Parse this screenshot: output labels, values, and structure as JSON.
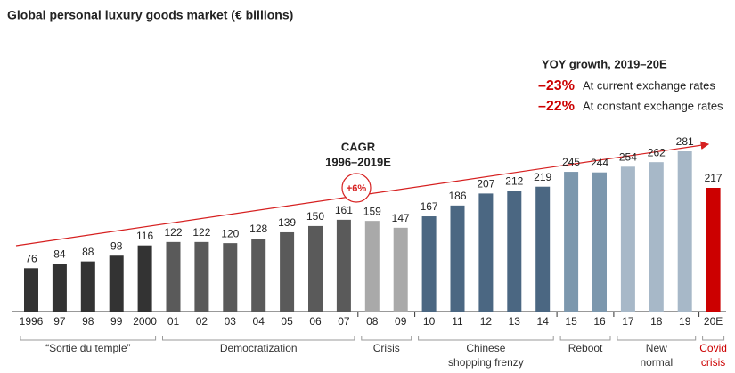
{
  "chart_data": {
    "type": "bar",
    "title": "Global personal luxury goods market (€ billions)",
    "groups": [
      {
        "label": [
          "“Sortie du temple”"
        ],
        "color": "#333333",
        "label_color": "#333333",
        "categories": [
          "1996",
          "97",
          "98",
          "99",
          "2000"
        ],
        "values": [
          76,
          84,
          88,
          98,
          116
        ]
      },
      {
        "label": [
          "Democratization"
        ],
        "color": "#5a5a5a",
        "label_color": "#333333",
        "categories": [
          "01",
          "02",
          "03",
          "04",
          "05",
          "06",
          "07"
        ],
        "values": [
          122,
          122,
          120,
          128,
          139,
          150,
          161
        ]
      },
      {
        "label": [
          "Crisis"
        ],
        "color": "#a9a9a9",
        "label_color": "#333333",
        "categories": [
          "08",
          "09"
        ],
        "values": [
          159,
          147
        ]
      },
      {
        "label": [
          "Chinese",
          "shopping frenzy"
        ],
        "color": "#4b6782",
        "label_color": "#333333",
        "categories": [
          "10",
          "11",
          "12",
          "13",
          "14"
        ],
        "values": [
          167,
          186,
          207,
          212,
          219
        ]
      },
      {
        "label": [
          "Reboot"
        ],
        "color": "#7c97ad",
        "label_color": "#333333",
        "categories": [
          "15",
          "16"
        ],
        "values": [
          245,
          244
        ]
      },
      {
        "label": [
          "New",
          "normal"
        ],
        "color": "#a7b8c8",
        "label_color": "#333333",
        "categories": [
          "17",
          "18",
          "19"
        ],
        "values": [
          254,
          262,
          281
        ]
      },
      {
        "label": [
          "Covid",
          "crisis"
        ],
        "color": "#cc0000",
        "label_color": "#cc0000",
        "categories": [
          "20E"
        ],
        "values": [
          217
        ]
      }
    ],
    "cagr": {
      "title": [
        "CAGR",
        "1996–2019E"
      ],
      "value": "+6%"
    },
    "yoy": {
      "title": "YOY growth, 2019–20E",
      "rows": [
        {
          "value": "–23%",
          "text": "At current exchange rates"
        },
        {
          "value": "–22%",
          "text": "At constant exchange rates"
        }
      ]
    }
  }
}
